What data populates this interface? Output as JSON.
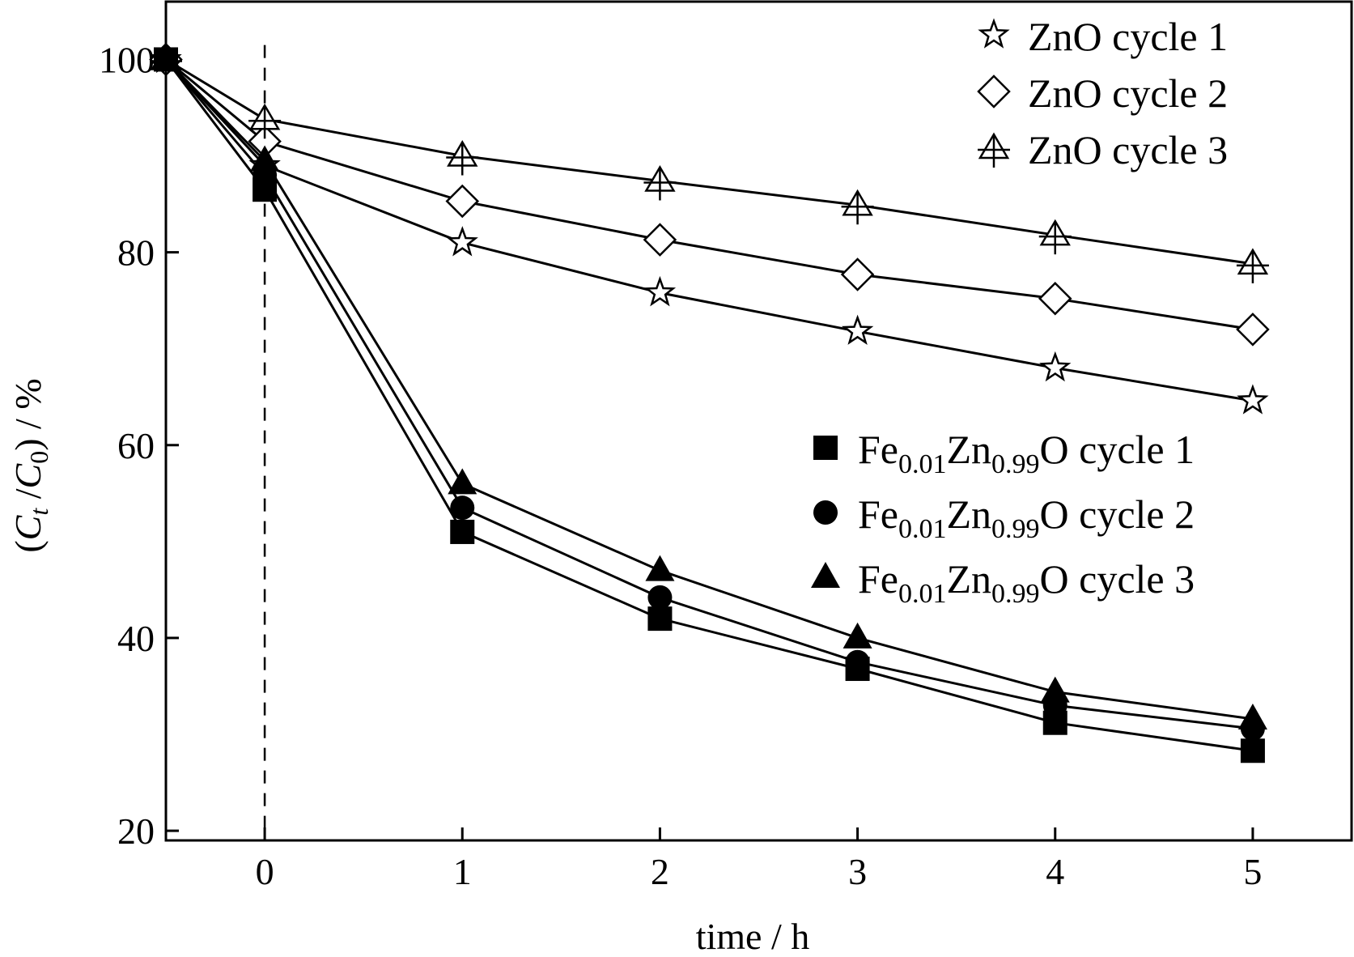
{
  "chart_data": {
    "type": "line",
    "xlabel": "time / h",
    "ylabel": {
      "paren_open": "(",
      "c1": "C",
      "sub1": "t",
      "slash": " /",
      "c2": "C",
      "sub2": "0",
      "paren_close": ")",
      "unit": " / %"
    },
    "xlim": [
      -0.5,
      5.5
    ],
    "ylim": [
      19,
      106
    ],
    "xticks": [
      0,
      1,
      2,
      3,
      4,
      5
    ],
    "yticks": [
      20,
      40,
      60,
      80,
      100
    ],
    "vline_x": 0,
    "x": [
      -0.5,
      0,
      1,
      2,
      3,
      4,
      5
    ],
    "series": [
      {
        "key": "zno1",
        "name": "ZnO cycle 1",
        "marker": "star",
        "values": [
          100,
          89,
          81,
          75.8,
          71.8,
          68,
          64.6
        ]
      },
      {
        "key": "zno2",
        "name": "ZnO cycle 2",
        "marker": "diamond",
        "values": [
          100,
          91.5,
          85.3,
          81.3,
          77.7,
          75.2,
          72
        ]
      },
      {
        "key": "zno3",
        "name": "ZnO cycle 3",
        "marker": "triangle-plus",
        "values": [
          100,
          93.8,
          90,
          87.4,
          84.9,
          81.8,
          78.8
        ]
      },
      {
        "key": "fe1",
        "marker": "square",
        "values": [
          100,
          86.5,
          51,
          42,
          36.8,
          31.2,
          28.3
        ]
      },
      {
        "key": "fe2",
        "marker": "circle",
        "values": [
          100,
          88,
          53.5,
          44.2,
          37.5,
          33,
          30.6
        ]
      },
      {
        "key": "fe3",
        "marker": "filled-triangle",
        "values": [
          100,
          89.5,
          56,
          47,
          40,
          34.4,
          31.6
        ]
      }
    ],
    "legend_fe": [
      {
        "key": "fe1",
        "pre": "Fe",
        "sub1": "0.01",
        "mid": "Zn",
        "sub2": "0.99",
        "post": "O cycle 1"
      },
      {
        "key": "fe2",
        "pre": "Fe",
        "sub1": "0.01",
        "mid": "Zn",
        "sub2": "0.99",
        "post": "O cycle 2"
      },
      {
        "key": "fe3",
        "pre": "Fe",
        "sub1": "0.01",
        "mid": "Zn",
        "sub2": "0.99",
        "post": "O cycle 3"
      }
    ],
    "legend_placement": [
      "top-right",
      "center-right"
    ],
    "grid": false
  }
}
